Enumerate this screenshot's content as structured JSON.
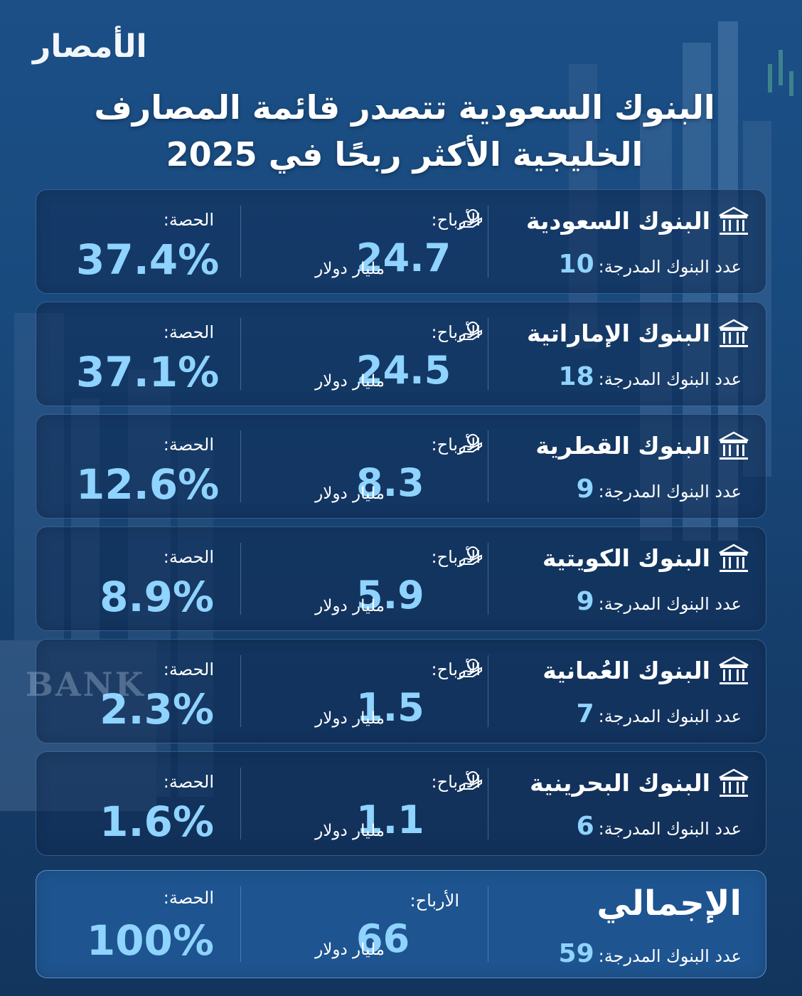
{
  "logo": "الأمصار",
  "title": {
    "line1": "البنوك السعودية تتصدر قائمة المصارف",
    "line2": "الخليجية الأكثر ربحًا في 2025"
  },
  "labels": {
    "count_prefix": "عدد البنوك المدرجة:",
    "profit_label": "الأرباح:",
    "profit_unit": "مليار دولار",
    "share_label": "الحصة:"
  },
  "banks": [
    {
      "name": "البنوك السعودية",
      "count": "10",
      "profit": "24.7",
      "share": "37.4%"
    },
    {
      "name": "البنوك الإماراتية",
      "count": "18",
      "profit": "24.5",
      "share": "37.1%"
    },
    {
      "name": "البنوك القطرية",
      "count": "9",
      "profit": "8.3",
      "share": "12.6%"
    },
    {
      "name": "البنوك الكويتية",
      "count": "9",
      "profit": "5.9",
      "share": "8.9%"
    },
    {
      "name": "البنوك العُمانية",
      "count": "7",
      "profit": "1.5",
      "share": "2.3%"
    },
    {
      "name": "البنوك البحرينية",
      "count": "6",
      "profit": "1.1",
      "share": "1.6%"
    }
  ],
  "total": {
    "name": "الإجمالي",
    "count": "59",
    "profit": "66",
    "share": "100%"
  },
  "background_text": "BANK",
  "icons": {
    "bank": "bank-building-icon",
    "profit": "money-hand-icon"
  },
  "colors": {
    "accent": "#8fd3ff",
    "panel": "#102c54",
    "background": "#1b4f86"
  }
}
